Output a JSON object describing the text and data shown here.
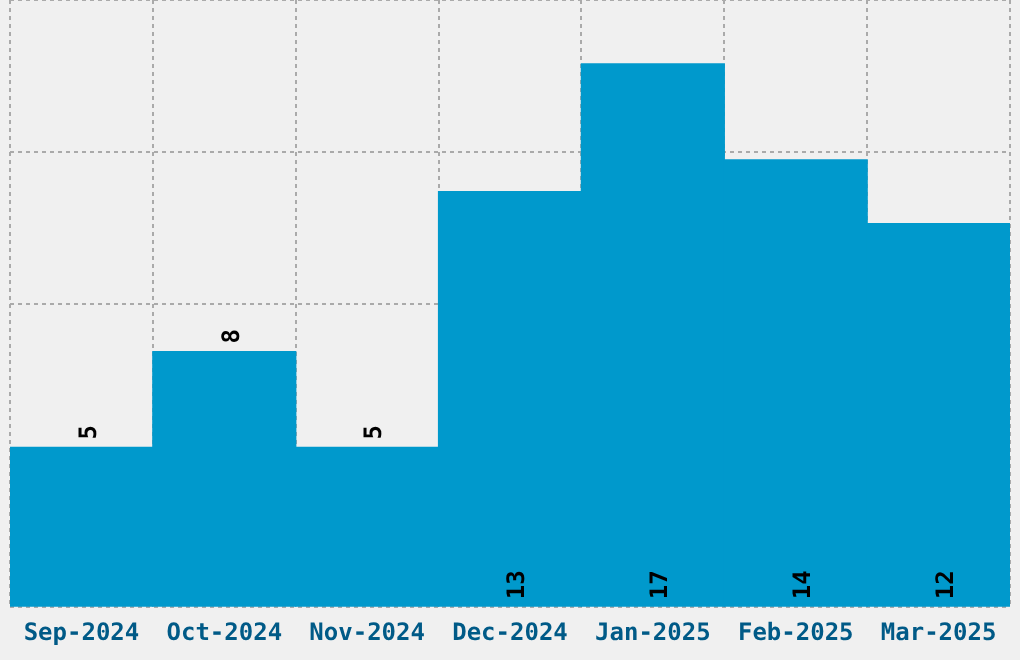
{
  "chart_data": {
    "type": "bar",
    "categories": [
      "Sep-2024",
      "Oct-2024",
      "Nov-2024",
      "Dec-2024",
      "Jan-2025",
      "Feb-2025",
      "Mar-2025"
    ],
    "values": [
      5,
      8,
      5,
      13,
      17,
      14,
      12
    ],
    "color": "#0099cc",
    "ylim": [
      0,
      19
    ],
    "tick_labels": "x",
    "grid": true,
    "data_labels": true
  }
}
